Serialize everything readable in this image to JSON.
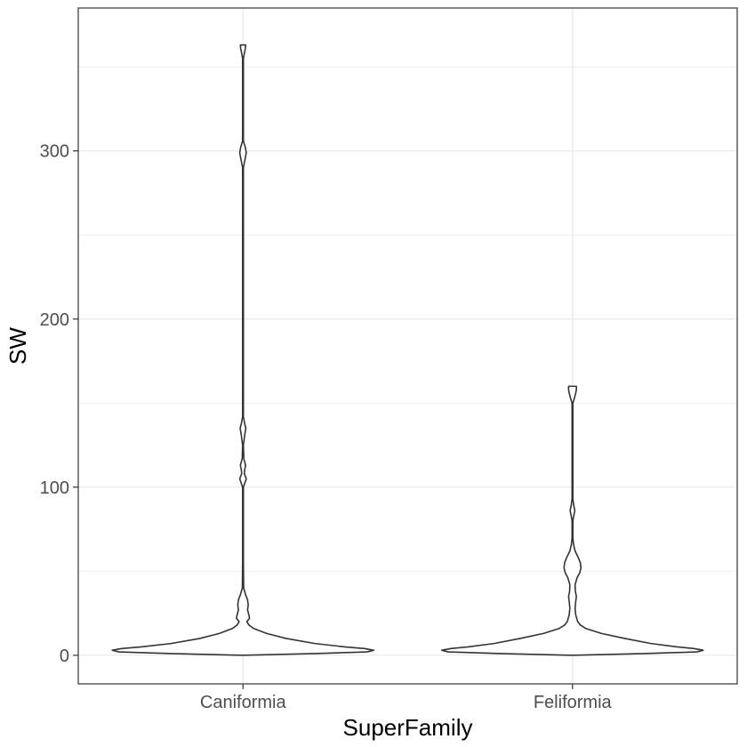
{
  "chart_data": {
    "type": "violin",
    "xlabel": "SuperFamily",
    "ylabel": "SW",
    "categories": [
      "Caniformia",
      "Feliformia"
    ],
    "ylim": [
      -17,
      385
    ],
    "yticks": [
      0,
      100,
      200,
      300
    ],
    "grid": true,
    "legend": "none",
    "colors": {
      "outline": "#333333",
      "grid": "#ebebeb",
      "panel_border": "#333333",
      "fill": "#ffffff"
    },
    "violins": [
      {
        "category": "Caniformia",
        "min": 0,
        "max": 363,
        "profile": [
          [
            0,
            0.01
          ],
          [
            1,
            0.55
          ],
          [
            2,
            0.95
          ],
          [
            3,
            1.0
          ],
          [
            4,
            0.93
          ],
          [
            5,
            0.78
          ],
          [
            7,
            0.55
          ],
          [
            10,
            0.33
          ],
          [
            13,
            0.18
          ],
          [
            16,
            0.08
          ],
          [
            18,
            0.045
          ],
          [
            20,
            0.03
          ],
          [
            22,
            0.05
          ],
          [
            24,
            0.045
          ],
          [
            27,
            0.035
          ],
          [
            30,
            0.04
          ],
          [
            33,
            0.035
          ],
          [
            36,
            0.02
          ],
          [
            40,
            0.005
          ],
          [
            55,
            0.003
          ],
          [
            100,
            0.003
          ],
          [
            105,
            0.025
          ],
          [
            108,
            0.01
          ],
          [
            110,
            0.012
          ],
          [
            113,
            0.02
          ],
          [
            117,
            0.006
          ],
          [
            125,
            0.003
          ],
          [
            132,
            0.015
          ],
          [
            135,
            0.022
          ],
          [
            138,
            0.012
          ],
          [
            142,
            0.003
          ],
          [
            200,
            0.003
          ],
          [
            290,
            0.003
          ],
          [
            296,
            0.018
          ],
          [
            299,
            0.025
          ],
          [
            302,
            0.018
          ],
          [
            306,
            0.003
          ],
          [
            355,
            0.003
          ],
          [
            358,
            0.01
          ],
          [
            361,
            0.018
          ],
          [
            363,
            0.02
          ]
        ]
      },
      {
        "category": "Feliformia",
        "min": 0,
        "max": 160,
        "profile": [
          [
            0,
            0.01
          ],
          [
            1,
            0.55
          ],
          [
            2,
            0.95
          ],
          [
            3,
            1.0
          ],
          [
            4,
            0.93
          ],
          [
            5,
            0.8
          ],
          [
            7,
            0.6
          ],
          [
            10,
            0.4
          ],
          [
            13,
            0.22
          ],
          [
            16,
            0.1
          ],
          [
            18,
            0.06
          ],
          [
            20,
            0.04
          ],
          [
            24,
            0.025
          ],
          [
            28,
            0.02
          ],
          [
            32,
            0.025
          ],
          [
            35,
            0.03
          ],
          [
            38,
            0.022
          ],
          [
            42,
            0.02
          ],
          [
            46,
            0.035
          ],
          [
            49,
            0.055
          ],
          [
            52,
            0.065
          ],
          [
            55,
            0.06
          ],
          [
            58,
            0.045
          ],
          [
            62,
            0.02
          ],
          [
            66,
            0.008
          ],
          [
            70,
            0.003
          ],
          [
            80,
            0.003
          ],
          [
            83,
            0.01
          ],
          [
            86,
            0.018
          ],
          [
            89,
            0.01
          ],
          [
            93,
            0.003
          ],
          [
            150,
            0.003
          ],
          [
            153,
            0.015
          ],
          [
            156,
            0.025
          ],
          [
            158,
            0.03
          ],
          [
            160,
            0.03
          ]
        ]
      }
    ]
  }
}
